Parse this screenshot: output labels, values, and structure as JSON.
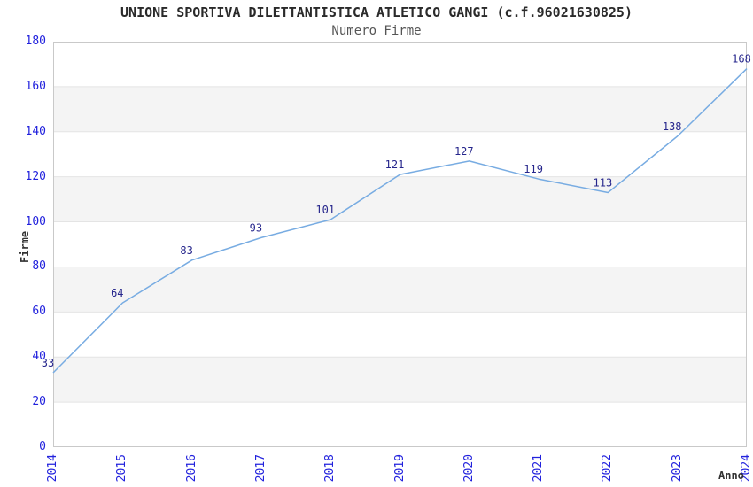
{
  "header": {
    "title": "UNIONE SPORTIVA DILETTANTISTICA ATLETICO GANGI (c.f.96021630825)",
    "subtitle": "Numero Firme"
  },
  "chart_data": {
    "type": "line",
    "title": "UNIONE SPORTIVA DILETTANTISTICA ATLETICO GANGI (c.f.96021630825)",
    "subtitle": "Numero Firme",
    "xlabel": "Anno",
    "ylabel": "Firme",
    "categories": [
      "2014",
      "2015",
      "2016",
      "2017",
      "2018",
      "2019",
      "2020",
      "2021",
      "2022",
      "2023",
      "2024"
    ],
    "values": [
      33,
      64,
      83,
      93,
      101,
      121,
      127,
      119,
      113,
      138,
      168
    ],
    "ylim": [
      0,
      180
    ],
    "ytick_step": 20,
    "yticks": [
      0,
      20,
      40,
      60,
      80,
      100,
      120,
      140,
      160,
      180
    ],
    "grid": "horizontal-lines-with-alternating-bands",
    "legend": "none",
    "point_labels_visible": true,
    "colors": {
      "line": "#78ace2",
      "tick_label": "#2222dd",
      "point_label": "#26268c",
      "band": "#f4f4f4",
      "gridline": "#e4e4e4",
      "plot_border": "#c9c9c9",
      "title_text": "#2a2a2a",
      "subtitle_text": "#555555",
      "axis_title": "#333333"
    }
  }
}
